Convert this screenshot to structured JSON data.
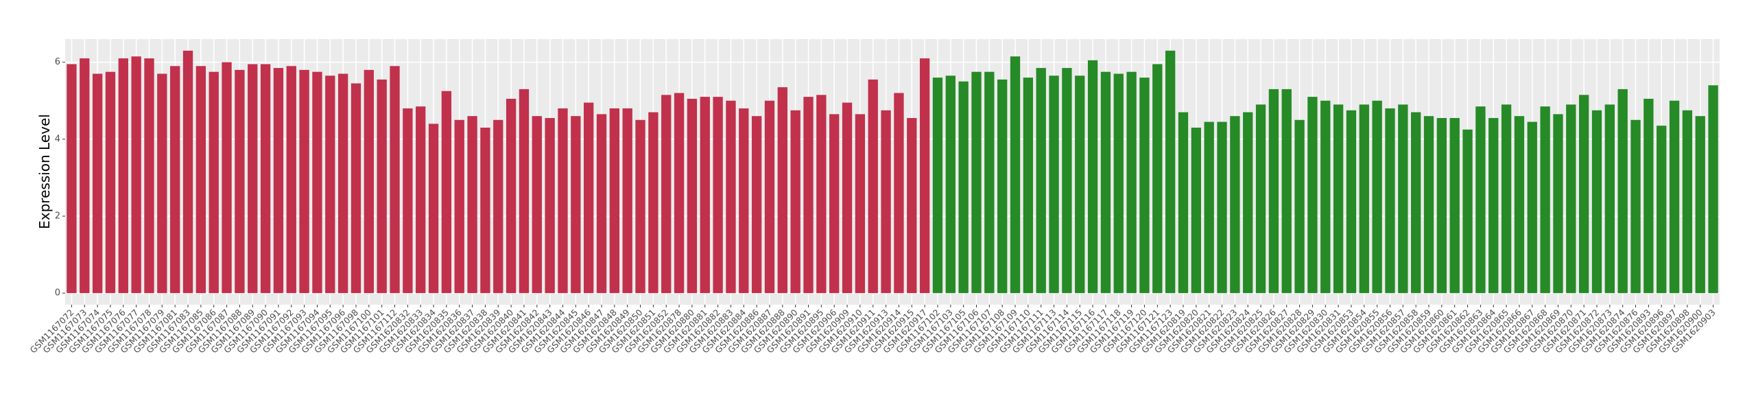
{
  "chart_data": {
    "type": "bar",
    "y_label": "Expression Level",
    "ylim": [
      -0.3,
      6.6
    ],
    "yticks": [
      0,
      2,
      4,
      6
    ],
    "grid": true,
    "background": "#ebebeb",
    "series": [
      {
        "color": "#c1314c",
        "categories": [
          "GSM1167072",
          "GSM1167073",
          "GSM1167074",
          "GSM1167075",
          "GSM1167076",
          "GSM1167077",
          "GSM1167078",
          "GSM1167079",
          "GSM1167081",
          "GSM1167083",
          "GSM1167085",
          "GSM1167086",
          "GSM1167087",
          "GSM1167088",
          "GSM1167089",
          "GSM1167090",
          "GSM1167091",
          "GSM1167092",
          "GSM1167093",
          "GSM1167094",
          "GSM1167095",
          "GSM1167096",
          "GSM1167098",
          "GSM1167100",
          "GSM1167101",
          "GSM1167112",
          "GSM1620832",
          "GSM1620833",
          "GSM1620834",
          "GSM1620835",
          "GSM1620836",
          "GSM1620837",
          "GSM1620838",
          "GSM1620839",
          "GSM1620840",
          "GSM1620841",
          "GSM1620842",
          "GSM1620843",
          "GSM1620844",
          "GSM1620845",
          "GSM1620846",
          "GSM1620847",
          "GSM1620848",
          "GSM1620849",
          "GSM1620850",
          "GSM1620851",
          "GSM1620852",
          "GSM1620878",
          "GSM1620880",
          "GSM1620881",
          "GSM1620882",
          "GSM1620883",
          "GSM1620884",
          "GSM1620886",
          "GSM1620887",
          "GSM1620888",
          "GSM1620890",
          "GSM1620891",
          "GSM1620895",
          "GSM1620906",
          "GSM1620909",
          "GSM1620910",
          "GSM1620911",
          "GSM1620913",
          "GSM1620914",
          "GSM1620915",
          "GSM1620917"
        ],
        "values": [
          5.95,
          6.1,
          5.7,
          5.75,
          6.1,
          6.15,
          6.1,
          5.7,
          5.9,
          6.3,
          5.9,
          5.75,
          6.0,
          5.8,
          5.95,
          5.95,
          5.85,
          5.9,
          5.8,
          5.75,
          5.65,
          5.7,
          5.45,
          5.8,
          5.55,
          5.9,
          4.8,
          4.85,
          4.4,
          5.25,
          4.5,
          4.6,
          4.3,
          4.5,
          5.05,
          5.3,
          4.6,
          4.55,
          4.8,
          4.6,
          4.95,
          4.65,
          4.8,
          4.8,
          4.5,
          4.7,
          5.15,
          5.2,
          5.05,
          5.1,
          5.1,
          5.0,
          4.8,
          4.6,
          5.0,
          5.35,
          4.75,
          5.1,
          5.15,
          4.65,
          4.95,
          4.65,
          5.55,
          4.75,
          5.2,
          4.55,
          6.1
        ]
      },
      {
        "color": "#268a26",
        "categories": [
          "GSM1167102",
          "GSM1167103",
          "GSM1167105",
          "GSM1167106",
          "GSM1167107",
          "GSM1167108",
          "GSM1167109",
          "GSM1167110",
          "GSM1167111",
          "GSM1167113",
          "GSM1167114",
          "GSM1167115",
          "GSM1167116",
          "GSM1167117",
          "GSM1167118",
          "GSM1167119",
          "GSM1167120",
          "GSM1167121",
          "GSM1167123",
          "GSM1620819",
          "GSM1620820",
          "GSM1620821",
          "GSM1620822",
          "GSM1620823",
          "GSM1620824",
          "GSM1620825",
          "GSM1620826",
          "GSM1620827",
          "GSM1620828",
          "GSM1620829",
          "GSM1620830",
          "GSM1620831",
          "GSM1620853",
          "GSM1620854",
          "GSM1620855",
          "GSM1620856",
          "GSM1620857",
          "GSM1620858",
          "GSM1620859",
          "GSM1620860",
          "GSM1620861",
          "GSM1620862",
          "GSM1620863",
          "GSM1620864",
          "GSM1620865",
          "GSM1620866",
          "GSM1620867",
          "GSM1620868",
          "GSM1620869",
          "GSM1620870",
          "GSM1620871",
          "GSM1620872",
          "GSM1620873",
          "GSM1620874",
          "GSM1620876",
          "GSM1620893",
          "GSM1620896",
          "GSM1620897",
          "GSM1620898",
          "GSM1620900",
          "GSM1620903"
        ],
        "values": [
          5.6,
          5.65,
          5.5,
          5.75,
          5.75,
          5.55,
          6.15,
          5.6,
          5.85,
          5.65,
          5.85,
          5.65,
          6.05,
          5.75,
          5.7,
          5.75,
          5.6,
          5.95,
          6.3,
          4.7,
          4.3,
          4.45,
          4.45,
          4.6,
          4.7,
          4.9,
          5.3,
          5.3,
          4.5,
          5.1,
          5.0,
          4.9,
          4.75,
          4.9,
          5.0,
          4.8,
          4.9,
          4.7,
          4.6,
          4.55,
          4.55,
          4.25,
          4.85,
          4.55,
          4.9,
          4.6,
          4.45,
          4.85,
          4.65,
          4.9,
          5.15,
          4.75,
          4.9,
          5.3,
          4.5,
          5.05,
          4.35,
          5.0,
          4.75,
          4.6,
          5.4
        ]
      }
    ]
  }
}
